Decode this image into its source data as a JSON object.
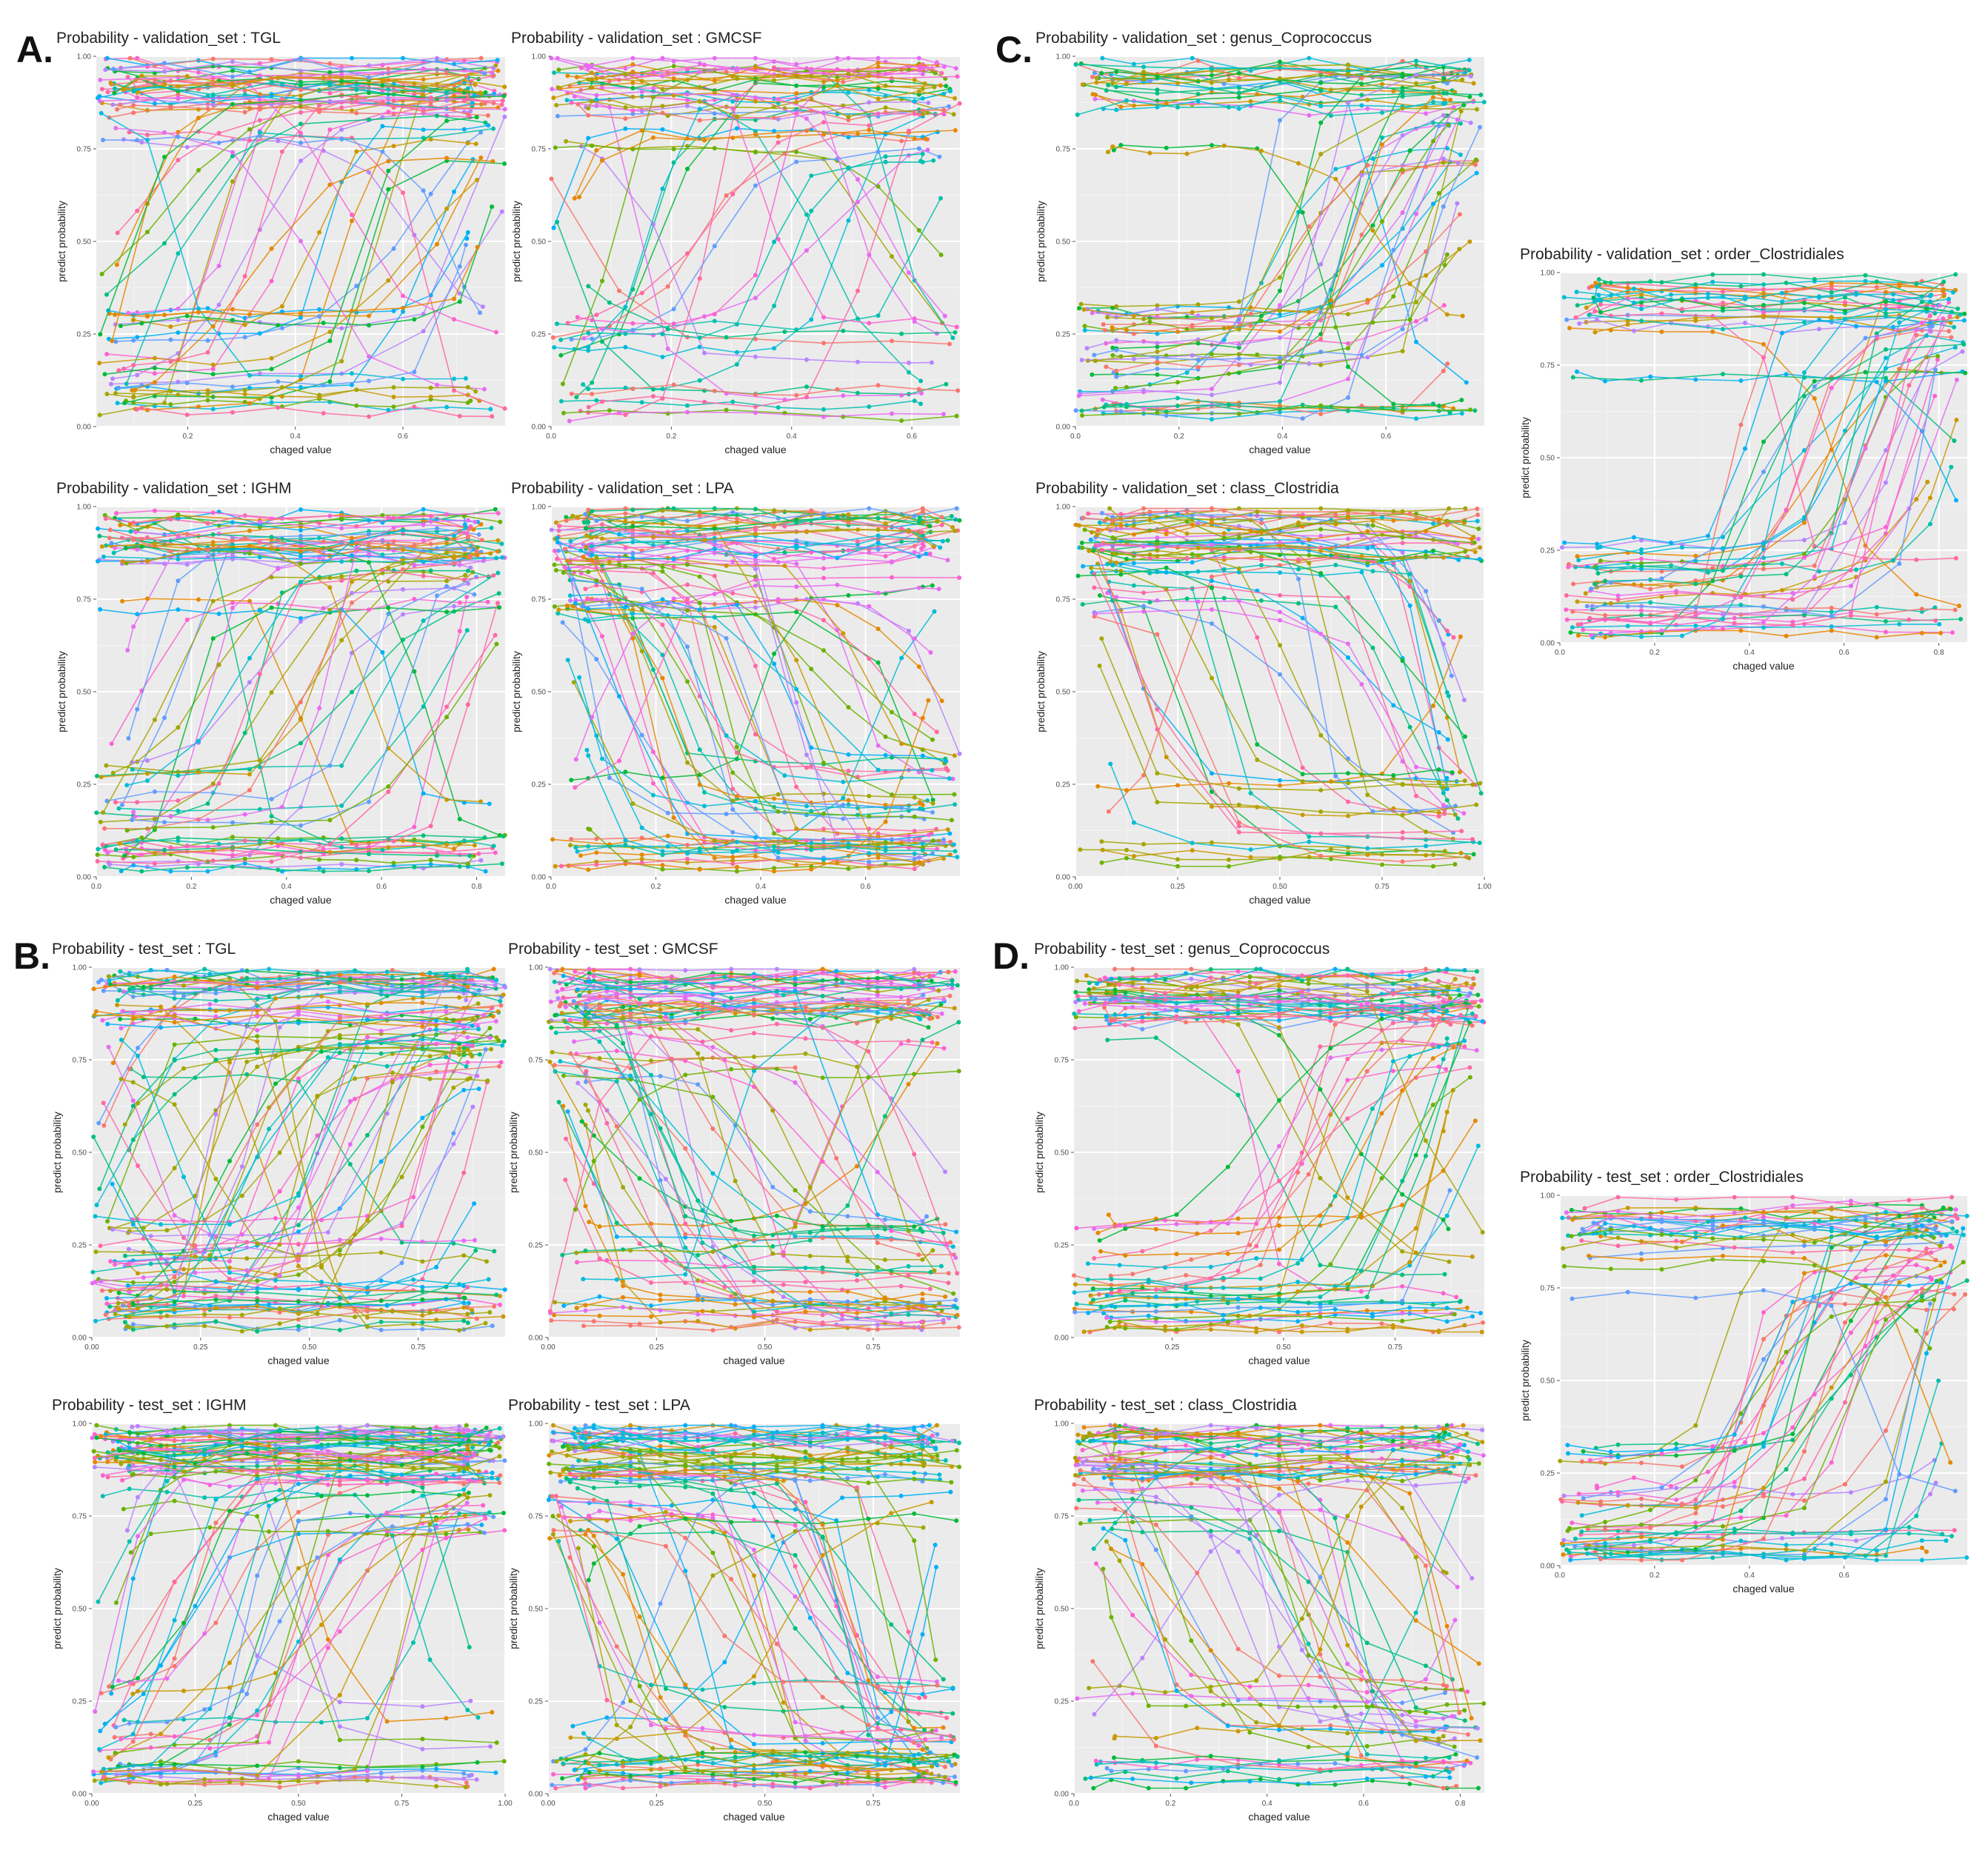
{
  "panel_labels": {
    "a": "A.",
    "b": "B.",
    "c": "C.",
    "d": "D."
  },
  "colors": {
    "panel_bg": "#ebebeb",
    "grid_major": "#ffffff",
    "palette": [
      "#F8766D",
      "#E58700",
      "#C99800",
      "#A3A500",
      "#6BB100",
      "#00BA38",
      "#00BF7D",
      "#00C0AF",
      "#00BCD8",
      "#00B0F6",
      "#619CFF",
      "#B983FF",
      "#E76BF3",
      "#FD61D1",
      "#FF67A4"
    ]
  },
  "chart_data": [
    {
      "id": "val_tgl",
      "type": "line",
      "title": "Probability - validation_set : TGL",
      "xlabel": "chaged value",
      "ylabel": "predict probability",
      "xlim": [
        0.03,
        0.79
      ],
      "ylim": [
        0,
        1
      ],
      "xticks": [
        0.2,
        0.4,
        0.6
      ],
      "xtick_labels": [
        "0.2",
        "0.4",
        "0.6"
      ],
      "yticks": [
        0,
        0.25,
        0.5,
        0.75,
        1
      ],
      "ytick_labels": [
        "0.00",
        "0.25",
        "0.50",
        "0.75",
        "1.00"
      ],
      "trend": "increasing",
      "n_series": 70,
      "seed": 11
    },
    {
      "id": "val_gmcsf",
      "type": "line",
      "title": "Probability - validation_set : GMCSF",
      "xlabel": "chaged value",
      "ylabel": "predict probability",
      "xlim": [
        0,
        0.68
      ],
      "ylim": [
        0,
        1
      ],
      "xticks": [
        0,
        0.2,
        0.4,
        0.6
      ],
      "xtick_labels": [
        "0.0",
        "0.2",
        "0.4",
        "0.6"
      ],
      "yticks": [
        0,
        0.25,
        0.5,
        0.75,
        1
      ],
      "ytick_labels": [
        "0.00",
        "0.25",
        "0.50",
        "0.75",
        "1.00"
      ],
      "trend": "mixed",
      "n_series": 55,
      "seed": 23
    },
    {
      "id": "val_ighm",
      "type": "line",
      "title": "Probability - validation_set : IGHM",
      "xlabel": "chaged value",
      "ylabel": "predict probability",
      "xlim": [
        0,
        0.86
      ],
      "ylim": [
        0,
        1
      ],
      "xticks": [
        0,
        0.2,
        0.4,
        0.6,
        0.8
      ],
      "xtick_labels": [
        "0.0",
        "0.2",
        "0.4",
        "0.6",
        "0.8"
      ],
      "yticks": [
        0,
        0.25,
        0.5,
        0.75,
        1
      ],
      "ytick_labels": [
        "0.00",
        "0.25",
        "0.50",
        "0.75",
        "1.00"
      ],
      "trend": "increasing",
      "n_series": 70,
      "seed": 37
    },
    {
      "id": "val_lpa",
      "type": "line",
      "title": "Probability - validation_set : LPA",
      "xlabel": "chaged value",
      "ylabel": "predict probability",
      "xlim": [
        0,
        0.78
      ],
      "ylim": [
        0,
        1
      ],
      "xticks": [
        0,
        0.2,
        0.4,
        0.6
      ],
      "xtick_labels": [
        "0.0",
        "0.2",
        "0.4",
        "0.6"
      ],
      "yticks": [
        0,
        0.25,
        0.5,
        0.75,
        1
      ],
      "ytick_labels": [
        "0.00",
        "0.25",
        "0.50",
        "0.75",
        "1.00"
      ],
      "trend": "decreasing",
      "n_series": 80,
      "seed": 41
    },
    {
      "id": "val_genus",
      "type": "line",
      "title": "Probability - validation_set : genus_Coprococcus",
      "xlabel": "chaged value",
      "ylabel": "predict probability",
      "xlim": [
        0,
        0.79
      ],
      "ylim": [
        0,
        1
      ],
      "xticks": [
        0,
        0.2,
        0.4,
        0.6
      ],
      "xtick_labels": [
        "0.0",
        "0.2",
        "0.4",
        "0.6"
      ],
      "yticks": [
        0,
        0.25,
        0.5,
        0.75,
        1
      ],
      "ytick_labels": [
        "0.00",
        "0.25",
        "0.50",
        "0.75",
        "1.00"
      ],
      "trend": "increasing_slow",
      "n_series": 60,
      "seed": 53
    },
    {
      "id": "val_class",
      "type": "line",
      "title": "Probability - validation_set : class_Clostridia",
      "xlabel": "chaged value",
      "ylabel": "predict probability",
      "xlim": [
        0,
        1
      ],
      "ylim": [
        0,
        1
      ],
      "xticks": [
        0,
        0.25,
        0.5,
        0.75,
        1
      ],
      "xtick_labels": [
        "0.00",
        "0.25",
        "0.50",
        "0.75",
        "1.00"
      ],
      "yticks": [
        0,
        0.25,
        0.5,
        0.75,
        1
      ],
      "ytick_labels": [
        "0.00",
        "0.25",
        "0.50",
        "0.75",
        "1.00"
      ],
      "trend": "decreasing",
      "n_series": 60,
      "seed": 61
    },
    {
      "id": "val_order",
      "type": "line",
      "title": "Probability - validation_set : order_Clostridiales",
      "xlabel": "chaged value",
      "ylabel": "predict probability",
      "xlim": [
        0,
        0.86
      ],
      "ylim": [
        0,
        1
      ],
      "xticks": [
        0,
        0.2,
        0.4,
        0.6,
        0.8
      ],
      "xtick_labels": [
        "0.0",
        "0.2",
        "0.4",
        "0.6",
        "0.8"
      ],
      "yticks": [
        0,
        0.25,
        0.5,
        0.75,
        1
      ],
      "ytick_labels": [
        "0.00",
        "0.25",
        "0.50",
        "0.75",
        "1.00"
      ],
      "trend": "increasing_slow",
      "n_series": 60,
      "seed": 71
    },
    {
      "id": "test_tgl",
      "type": "line",
      "title": "Probability - test_set : TGL",
      "xlabel": "chaged value",
      "ylabel": "predict probability",
      "xlim": [
        0,
        0.95
      ],
      "ylim": [
        0,
        1
      ],
      "xticks": [
        0,
        0.25,
        0.5,
        0.75
      ],
      "xtick_labels": [
        "0.00",
        "0.25",
        "0.50",
        "0.75"
      ],
      "yticks": [
        0,
        0.25,
        0.5,
        0.75,
        1
      ],
      "ytick_labels": [
        "0.00",
        "0.25",
        "0.50",
        "0.75",
        "1.00"
      ],
      "trend": "increasing",
      "n_series": 85,
      "seed": 83
    },
    {
      "id": "test_gmcsf",
      "type": "line",
      "title": "Probability - test_set : GMCSF",
      "xlabel": "chaged value",
      "ylabel": "predict probability",
      "xlim": [
        0,
        0.95
      ],
      "ylim": [
        0,
        1
      ],
      "xticks": [
        0,
        0.25,
        0.5,
        0.75
      ],
      "xtick_labels": [
        "0.00",
        "0.25",
        "0.50",
        "0.75"
      ],
      "yticks": [
        0,
        0.25,
        0.5,
        0.75,
        1
      ],
      "ytick_labels": [
        "0.00",
        "0.25",
        "0.50",
        "0.75",
        "1.00"
      ],
      "trend": "decreasing",
      "n_series": 80,
      "seed": 97
    },
    {
      "id": "test_ighm",
      "type": "line",
      "title": "Probability - test_set : IGHM",
      "xlabel": "chaged value",
      "ylabel": "predict probability",
      "xlim": [
        0,
        1
      ],
      "ylim": [
        0,
        1
      ],
      "xticks": [
        0,
        0.25,
        0.5,
        0.75,
        1
      ],
      "xtick_labels": [
        "0.00",
        "0.25",
        "0.50",
        "0.75",
        "1.00"
      ],
      "yticks": [
        0,
        0.25,
        0.5,
        0.75,
        1
      ],
      "ytick_labels": [
        "0.00",
        "0.25",
        "0.50",
        "0.75",
        "1.00"
      ],
      "trend": "increasing",
      "n_series": 85,
      "seed": 101
    },
    {
      "id": "test_lpa",
      "type": "line",
      "title": "Probability - test_set : LPA",
      "xlabel": "chaged value",
      "ylabel": "predict probability",
      "xlim": [
        0,
        0.95
      ],
      "ylim": [
        0,
        1
      ],
      "xticks": [
        0,
        0.25,
        0.5,
        0.75
      ],
      "xtick_labels": [
        "0.00",
        "0.25",
        "0.50",
        "0.75"
      ],
      "yticks": [
        0,
        0.25,
        0.5,
        0.75,
        1
      ],
      "ytick_labels": [
        "0.00",
        "0.25",
        "0.50",
        "0.75",
        "1.00"
      ],
      "trend": "decreasing",
      "n_series": 85,
      "seed": 113
    },
    {
      "id": "test_genus",
      "type": "line",
      "title": "Probability - test_set : genus_Coprococcus",
      "xlabel": "chaged value",
      "ylabel": "predict probability",
      "xlim": [
        0.03,
        0.95
      ],
      "ylim": [
        0,
        1
      ],
      "xticks": [
        0.25,
        0.5,
        0.75
      ],
      "xtick_labels": [
        "0.25",
        "0.50",
        "0.75"
      ],
      "yticks": [
        0,
        0.25,
        0.5,
        0.75,
        1
      ],
      "ytick_labels": [
        "0.00",
        "0.25",
        "0.50",
        "0.75",
        "1.00"
      ],
      "trend": "increasing_slow",
      "n_series": 70,
      "seed": 127
    },
    {
      "id": "test_class",
      "type": "line",
      "title": "Probability - test_set : class_Clostridia",
      "xlabel": "chaged value",
      "ylabel": "predict probability",
      "xlim": [
        0,
        0.85
      ],
      "ylim": [
        0,
        1
      ],
      "xticks": [
        0,
        0.2,
        0.4,
        0.6,
        0.8
      ],
      "xtick_labels": [
        "0.0",
        "0.2",
        "0.4",
        "0.6",
        "0.8"
      ],
      "yticks": [
        0,
        0.25,
        0.5,
        0.75,
        1
      ],
      "ytick_labels": [
        "0.00",
        "0.25",
        "0.50",
        "0.75",
        "1.00"
      ],
      "trend": "decreasing",
      "n_series": 70,
      "seed": 131
    },
    {
      "id": "test_order",
      "type": "line",
      "title": "Probability - test_set : order_Clostridiales",
      "xlabel": "chaged value",
      "ylabel": "predict probability",
      "xlim": [
        0,
        0.86
      ],
      "ylim": [
        0,
        1
      ],
      "xticks": [
        0,
        0.2,
        0.4,
        0.6
      ],
      "xtick_labels": [
        "0.0",
        "0.2",
        "0.4",
        "0.6"
      ],
      "yticks": [
        0,
        0.25,
        0.5,
        0.75,
        1
      ],
      "ytick_labels": [
        "0.00",
        "0.25",
        "0.50",
        "0.75",
        "1.00"
      ],
      "trend": "increasing_slow",
      "n_series": 60,
      "seed": 139
    }
  ]
}
